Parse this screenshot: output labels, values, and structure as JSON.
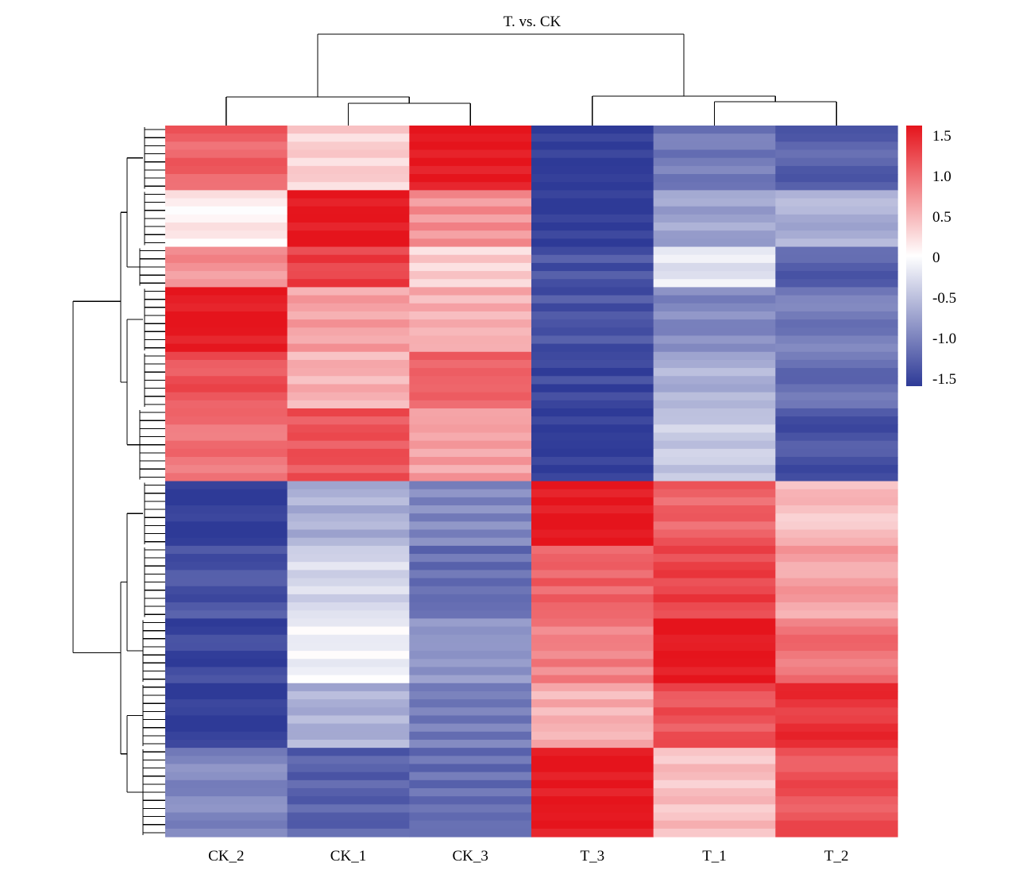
{
  "chart_data": {
    "type": "heatmap",
    "title": "T. vs. CK",
    "columns": [
      "CK_2",
      "CK_1",
      "CK_3",
      "T_3",
      "T_1",
      "T_2"
    ],
    "row_clusters": [
      {
        "rows": 8,
        "values": [
          1.0,
          0.3,
          1.5,
          -1.5,
          -1.0,
          -1.2
        ]
      },
      {
        "rows": 7,
        "values": [
          0.1,
          1.5,
          0.7,
          -1.5,
          -0.7,
          -0.6
        ]
      },
      {
        "rows": 5,
        "values": [
          0.7,
          1.2,
          0.3,
          -1.3,
          -0.2,
          -1.2
        ]
      },
      {
        "rows": 8,
        "values": [
          1.5,
          0.6,
          0.5,
          -1.3,
          -0.9,
          -1.0
        ]
      },
      {
        "rows": 7,
        "values": [
          1.1,
          0.5,
          1.0,
          -1.4,
          -0.6,
          -1.1
        ]
      },
      {
        "rows": 9,
        "values": [
          0.9,
          1.1,
          0.6,
          -1.5,
          -0.4,
          -1.3
        ]
      },
      {
        "rows": 8,
        "values": [
          -1.5,
          -0.6,
          -0.9,
          1.5,
          1.0,
          0.4
        ]
      },
      {
        "rows": 9,
        "values": [
          -1.3,
          -0.3,
          -1.1,
          1.0,
          1.2,
          0.6
        ]
      },
      {
        "rows": 8,
        "values": [
          -1.4,
          -0.1,
          -0.8,
          0.8,
          1.5,
          0.9
        ]
      },
      {
        "rows": 8,
        "values": [
          -1.5,
          -0.6,
          -1.0,
          0.5,
          1.1,
          1.3
        ]
      },
      {
        "rows": 11,
        "values": [
          -0.9,
          -1.2,
          -1.1,
          1.5,
          0.4,
          1.1
        ]
      }
    ],
    "colorbar": {
      "range": [
        -1.5,
        1.5
      ],
      "ticks": [
        "1.5",
        "1.0",
        "0.5",
        "0",
        "-0.5",
        "-1.0",
        "-1.5"
      ],
      "colors": {
        "low": "#2e3a97",
        "mid": "#ffffff",
        "high": "#e5141c"
      }
    },
    "grid": false
  }
}
